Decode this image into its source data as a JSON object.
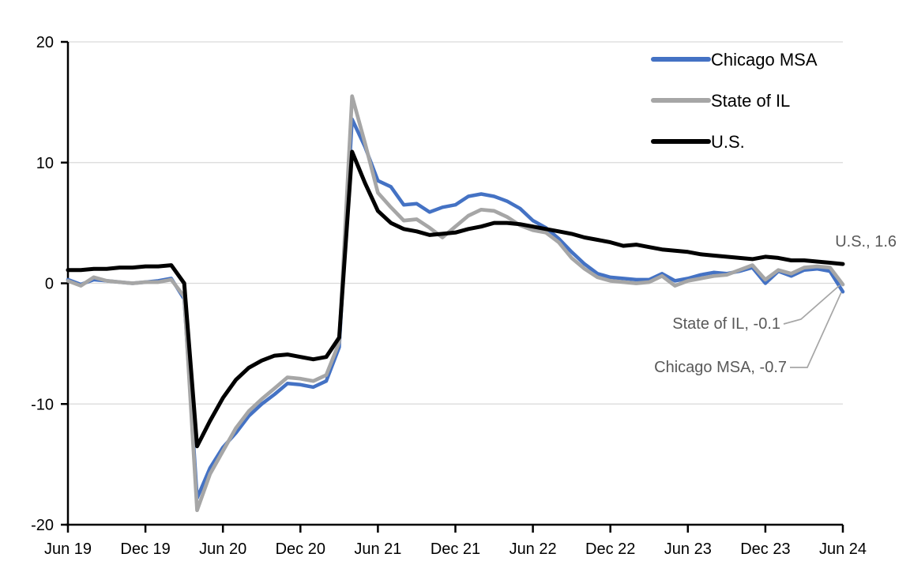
{
  "chart_data": {
    "type": "line",
    "title": "",
    "xlabel": "",
    "ylabel": "",
    "ylim": [
      -20,
      20
    ],
    "y_ticks": [
      20,
      10,
      0,
      -10,
      -20
    ],
    "x_tick_labels": [
      "Jun 19",
      "Dec 19",
      "Jun 20",
      "Dec 20",
      "Jun 21",
      "Dec 21",
      "Jun 22",
      "Dec 22",
      "Jun 23",
      "Dec 23",
      "Jun 24"
    ],
    "months_per_tick": 6,
    "grid": "horizontal",
    "legend_position": "top-right-inside",
    "series": [
      {
        "name": "Chicago MSA",
        "color": "#4472C4",
        "end_value": -0.7,
        "values": [
          0.3,
          -0.1,
          0.3,
          0.2,
          0.1,
          0.0,
          0.1,
          0.2,
          0.4,
          -1.3,
          -17.8,
          -15.3,
          -13.6,
          -12.4,
          -11.0,
          -10.0,
          -9.2,
          -8.3,
          -8.4,
          -8.6,
          -8.1,
          -5.3,
          13.6,
          11.3,
          8.5,
          8.0,
          6.5,
          6.6,
          5.9,
          6.3,
          6.5,
          7.2,
          7.4,
          7.2,
          6.8,
          6.2,
          5.2,
          4.6,
          3.7,
          2.6,
          1.6,
          0.8,
          0.5,
          0.4,
          0.3,
          0.3,
          0.8,
          0.2,
          0.4,
          0.7,
          0.9,
          0.8,
          1.0,
          1.3,
          0.0,
          1.0,
          0.6,
          1.1,
          1.2,
          1.0,
          -0.7
        ]
      },
      {
        "name": "State of IL",
        "color": "#A6A6A6",
        "end_value": -0.1,
        "values": [
          0.2,
          -0.2,
          0.5,
          0.2,
          0.1,
          0.0,
          0.1,
          0.1,
          0.3,
          -1.1,
          -18.8,
          -15.8,
          -13.9,
          -12.0,
          -10.6,
          -9.6,
          -8.7,
          -7.8,
          -7.9,
          -8.1,
          -7.6,
          -4.9,
          15.5,
          11.6,
          7.5,
          6.3,
          5.2,
          5.3,
          4.6,
          3.8,
          4.7,
          5.6,
          6.1,
          6.0,
          5.5,
          4.8,
          4.4,
          4.2,
          3.4,
          2.1,
          1.2,
          0.5,
          0.2,
          0.1,
          0.0,
          0.1,
          0.6,
          -0.2,
          0.2,
          0.4,
          0.6,
          0.7,
          1.1,
          1.5,
          0.3,
          1.1,
          0.8,
          1.3,
          1.4,
          1.3,
          -0.1
        ]
      },
      {
        "name": "U.S.",
        "color": "#000000",
        "end_value": 1.6,
        "values": [
          1.1,
          1.1,
          1.2,
          1.2,
          1.3,
          1.3,
          1.4,
          1.4,
          1.5,
          0.0,
          -13.5,
          -11.4,
          -9.5,
          -8.0,
          -7.0,
          -6.4,
          -6.0,
          -5.9,
          -6.1,
          -6.3,
          -6.1,
          -4.5,
          10.9,
          8.3,
          6.0,
          5.0,
          4.5,
          4.3,
          4.0,
          4.1,
          4.2,
          4.5,
          4.7,
          5.0,
          5.0,
          4.9,
          4.7,
          4.5,
          4.3,
          4.1,
          3.8,
          3.6,
          3.4,
          3.1,
          3.2,
          3.0,
          2.8,
          2.7,
          2.6,
          2.4,
          2.3,
          2.2,
          2.1,
          2.0,
          2.2,
          2.1,
          1.9,
          1.9,
          1.8,
          1.7,
          1.6
        ]
      }
    ],
    "legend_items": [
      {
        "label": "Chicago MSA",
        "color": "#4472C4"
      },
      {
        "label": "State of IL",
        "color": "#A6A6A6"
      },
      {
        "label": "U.S.",
        "color": "#000000"
      }
    ],
    "annotations": [
      {
        "label": "U.S., 1.6"
      },
      {
        "label": "State of IL, -0.1"
      },
      {
        "label": "Chicago MSA, -0.7"
      }
    ],
    "colors": {
      "background": "#FFFFFF",
      "gridline": "#D9D9D9",
      "axis": "#000000",
      "annotation_text": "#595959",
      "leader_line": "#A6A6A6"
    }
  }
}
